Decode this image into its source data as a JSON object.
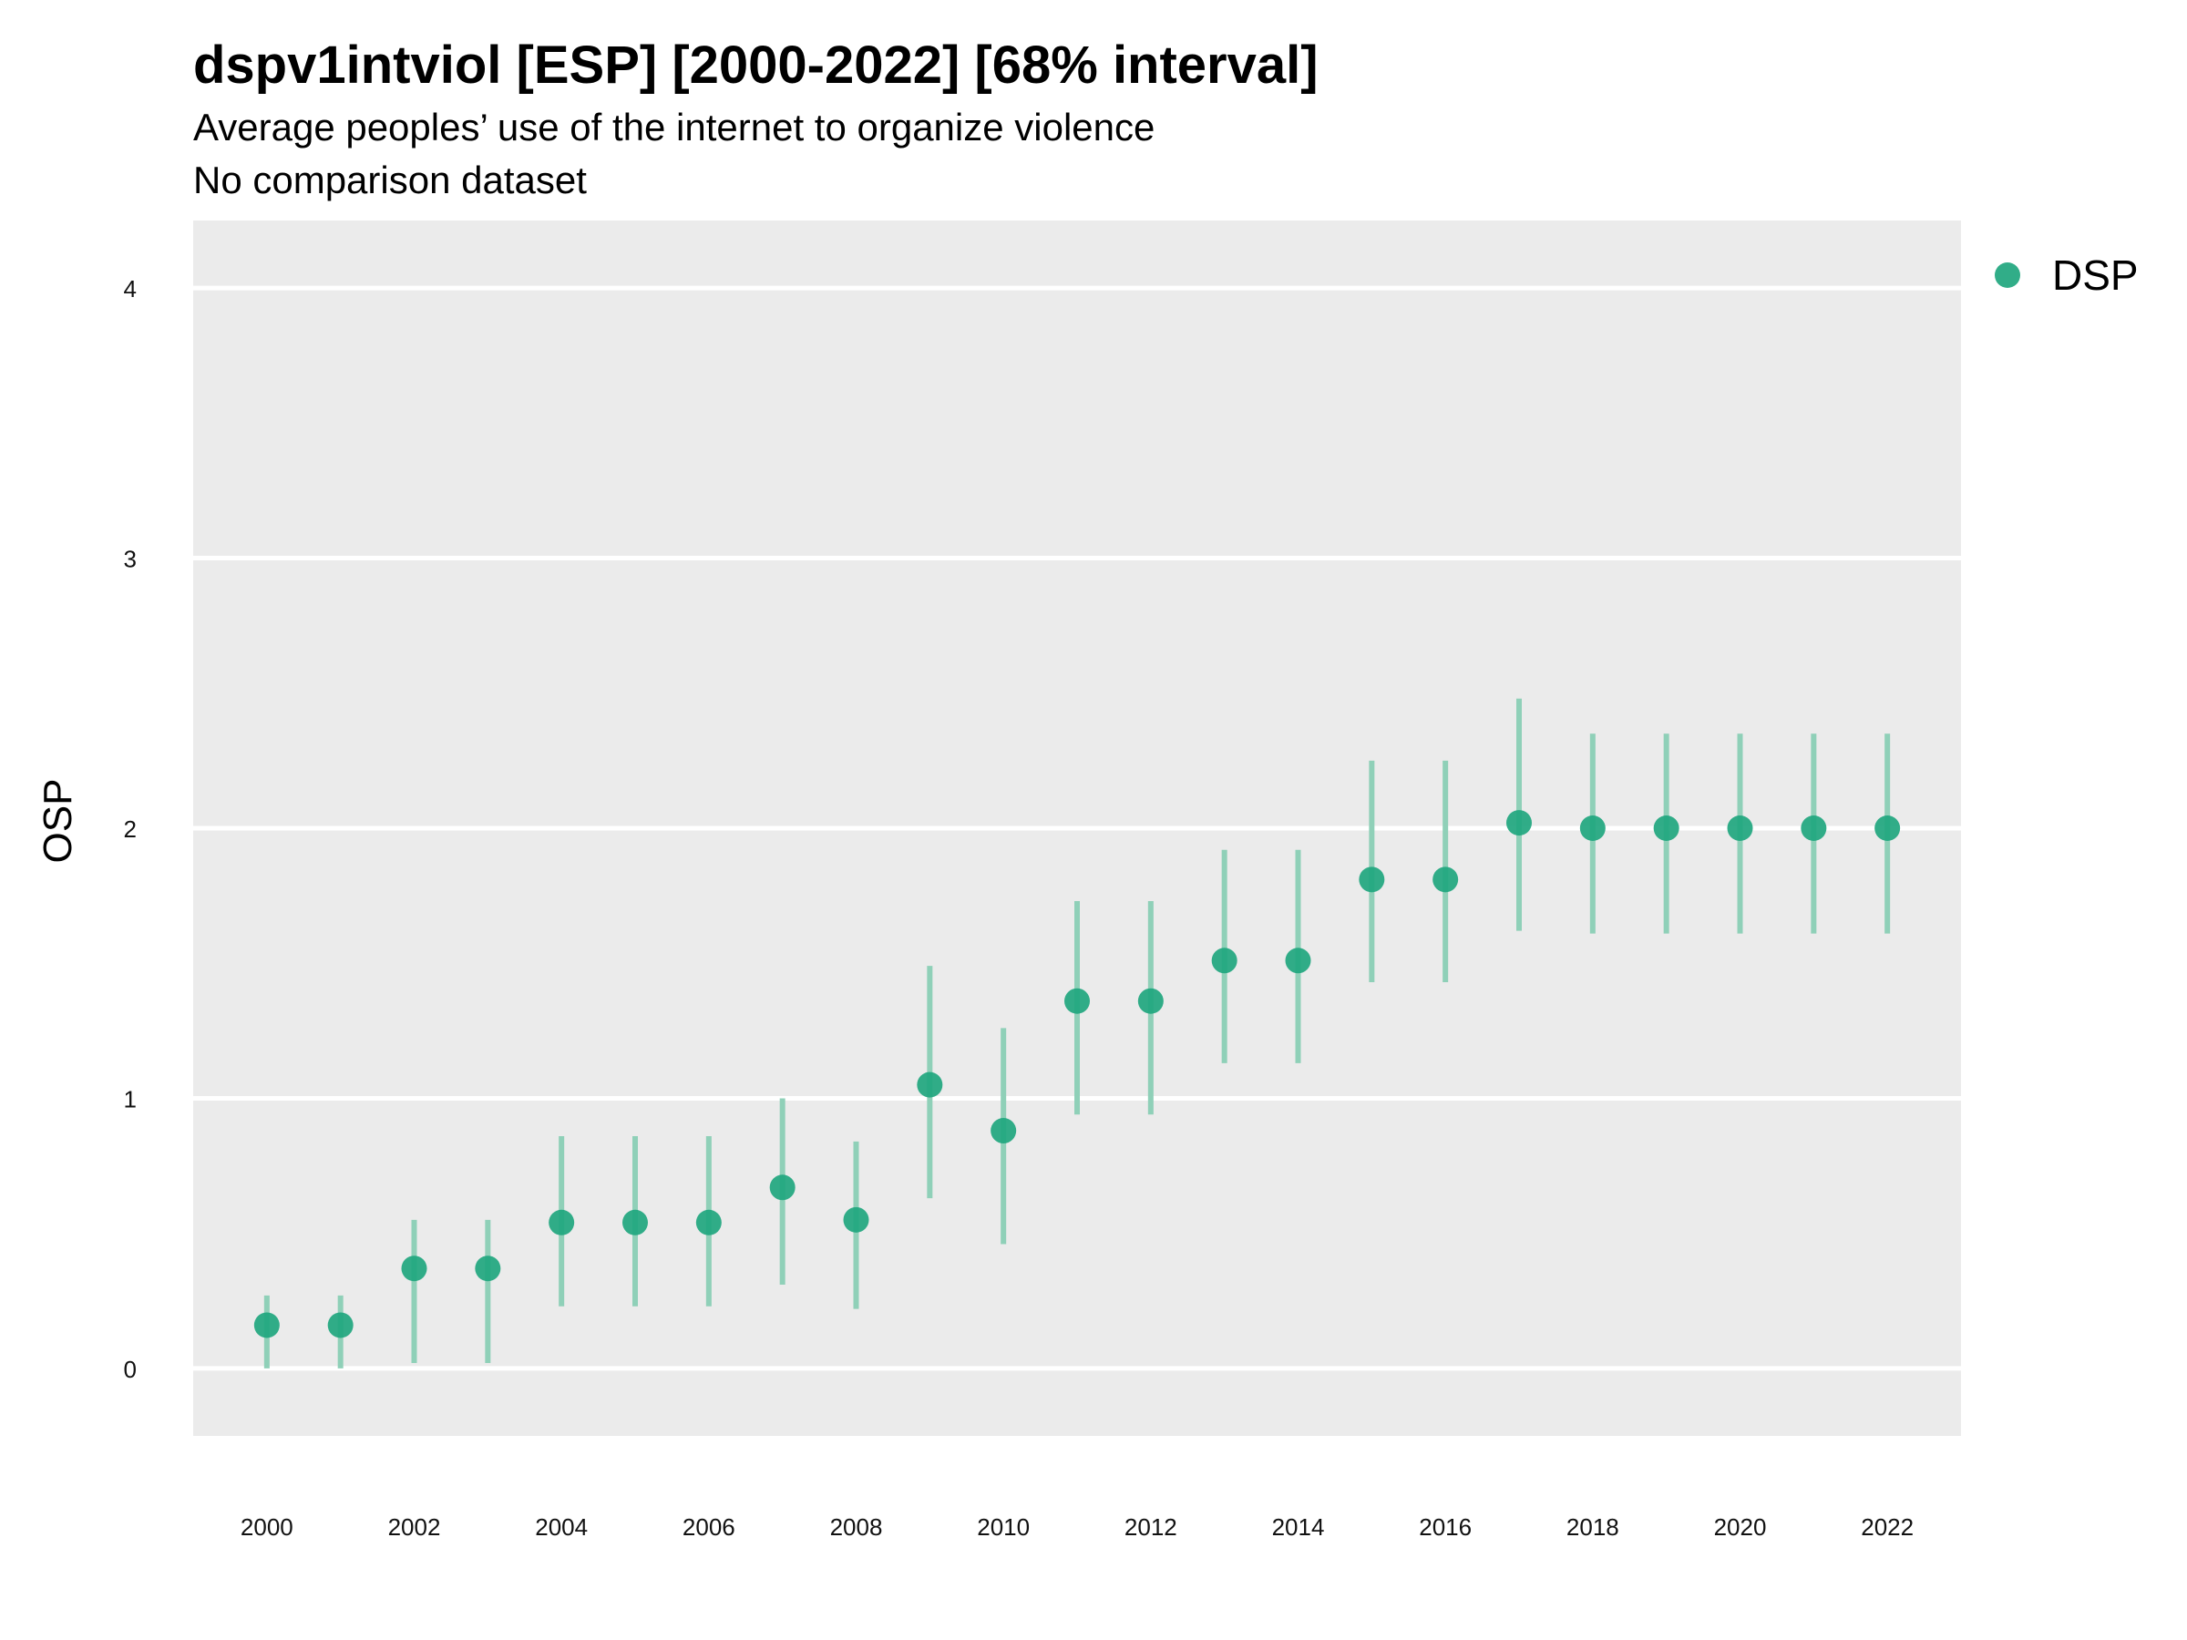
{
  "chart_data": {
    "type": "scatter",
    "title": "dspv1intviol [ESP] [2000-2022] [68% interval]",
    "subtitle": "Average peoples’ use of the internet to organize violence",
    "caption": "No comparison dataset",
    "xlabel": "",
    "ylabel": "OSP",
    "xlim": [
      1999,
      2023
    ],
    "ylim": [
      -0.25,
      4.25
    ],
    "x_ticks": [
      "2000",
      "2002",
      "2004",
      "2006",
      "2008",
      "2010",
      "2012",
      "2014",
      "2016",
      "2018",
      "2020",
      "2022"
    ],
    "y_ticks": [
      "0",
      "1",
      "2",
      "3",
      "4"
    ],
    "grid": true,
    "legend_position": "right",
    "colors": {
      "series": "#1fa67e",
      "interval": "#8fd0b8",
      "panel": "#ebebeb",
      "grid": "#ffffff"
    },
    "series": [
      {
        "name": "DSP",
        "x": [
          2000,
          2001,
          2002,
          2003,
          2004,
          2005,
          2006,
          2007,
          2008,
          2009,
          2010,
          2011,
          2012,
          2013,
          2014,
          2015,
          2016,
          2017,
          2018,
          2019,
          2020,
          2021,
          2022
        ],
        "y": [
          0.16,
          0.16,
          0.37,
          0.37,
          0.54,
          0.54,
          0.54,
          0.67,
          0.55,
          1.05,
          0.88,
          1.36,
          1.36,
          1.51,
          1.51,
          1.81,
          1.81,
          2.02,
          2.0,
          2.0,
          2.0,
          2.0,
          2.0
        ],
        "lower": [
          0.0,
          0.0,
          0.02,
          0.02,
          0.23,
          0.23,
          0.23,
          0.31,
          0.22,
          0.63,
          0.46,
          0.94,
          0.94,
          1.13,
          1.13,
          1.43,
          1.43,
          1.62,
          1.61,
          1.61,
          1.61,
          1.61,
          1.61
        ],
        "upper": [
          0.27,
          0.27,
          0.55,
          0.55,
          0.86,
          0.86,
          0.86,
          1.0,
          0.84,
          1.49,
          1.26,
          1.73,
          1.73,
          1.92,
          1.92,
          2.25,
          2.25,
          2.48,
          2.35,
          2.35,
          2.35,
          2.35,
          2.35
        ]
      }
    ]
  }
}
